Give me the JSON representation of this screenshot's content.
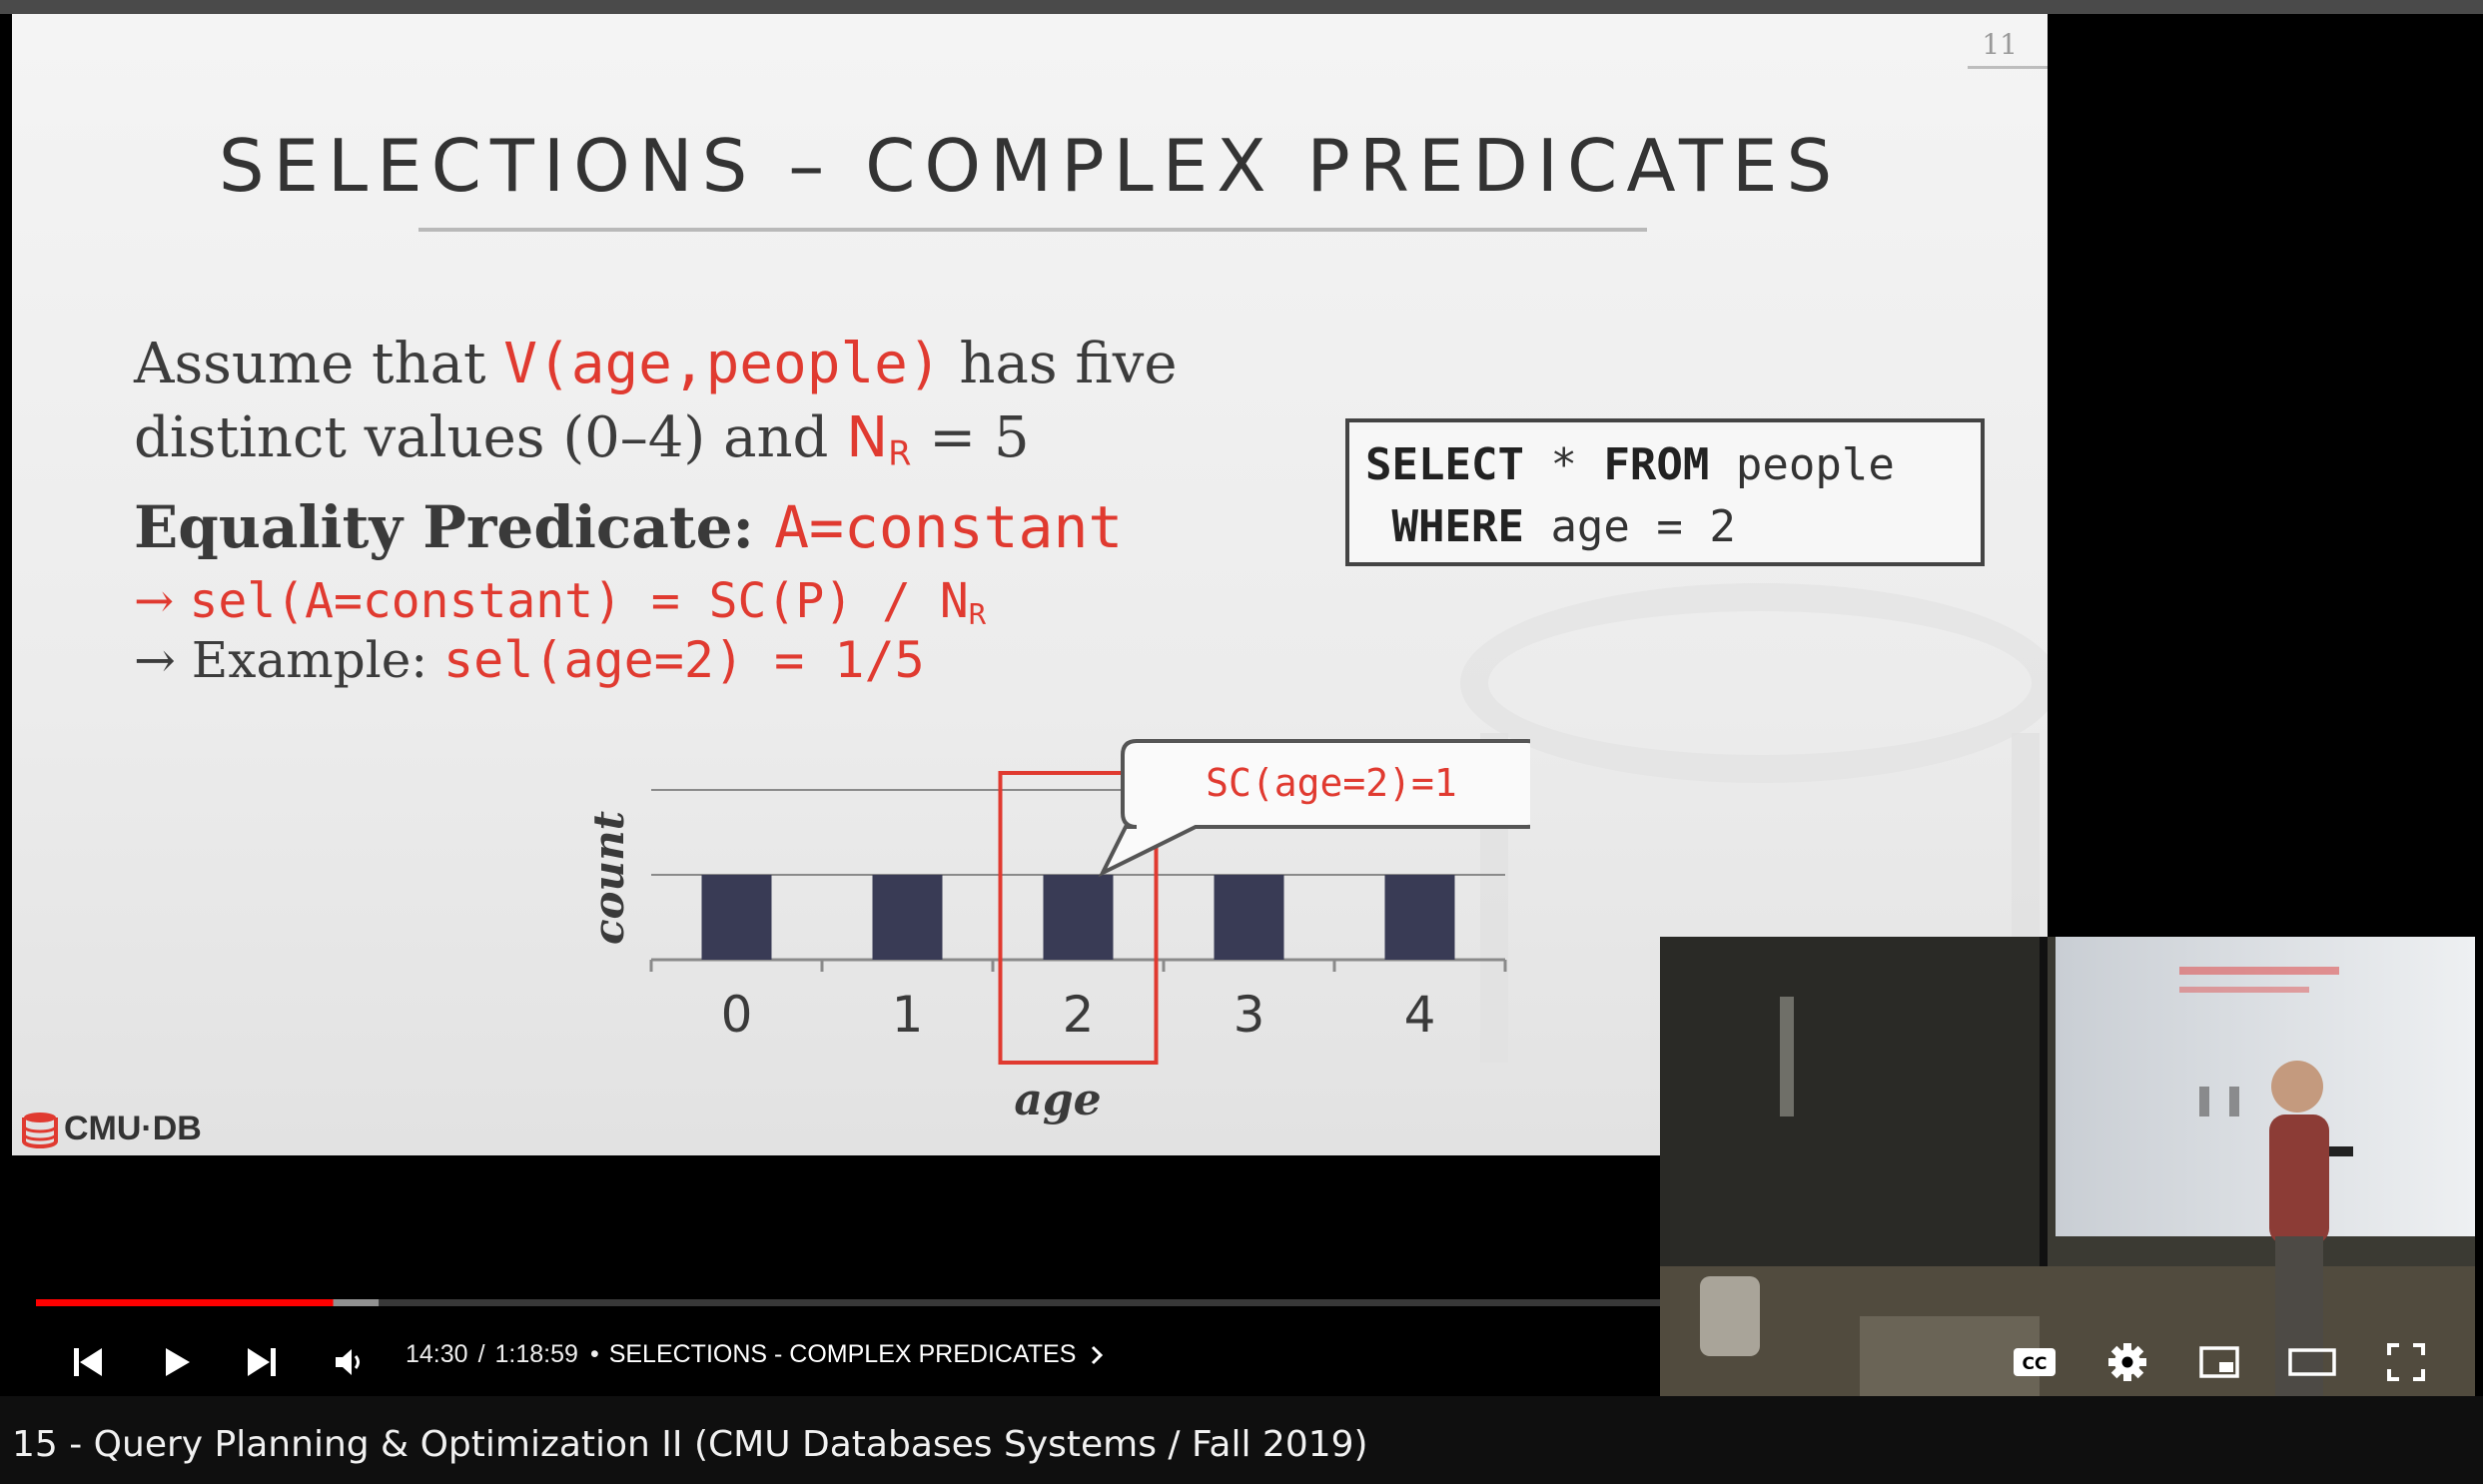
{
  "slide": {
    "number": "11",
    "title": "SELECTIONS – COMPLEX PREDICATES",
    "line1": {
      "t1": "Assume that ",
      "code": "V(age,people)",
      "t2": " has five"
    },
    "line2": {
      "t1": "distinct values (0–4) and ",
      "n": "N",
      "sub": "R",
      "t2": " = 5"
    },
    "line3": {
      "t1": "Equality Predicate: ",
      "code": "A=constant"
    },
    "line4": {
      "arrow": "→ ",
      "code": "sel(A=constant) = SC(P) / N",
      "sub": "R"
    },
    "line5": {
      "arrow": "→ ",
      "t1": "Example: ",
      "code": "sel(age=2) = 1/5"
    },
    "sql": {
      "kw1": "SELECT",
      "star": " * ",
      "kw2": "FROM",
      "table": " people",
      "kw3": "WHERE",
      "cond": " age = 2"
    },
    "callout": "SC(age=2)=1",
    "logo_text": "CMU·DB"
  },
  "chart_data": {
    "type": "bar",
    "categories": [
      "0",
      "1",
      "2",
      "3",
      "4"
    ],
    "values": [
      1,
      1,
      1,
      1,
      1
    ],
    "xlabel": "age",
    "ylabel": "count",
    "ylim": [
      0,
      2
    ],
    "highlight": "2",
    "bar_color": "#393b55",
    "highlight_color": "#e03a30"
  },
  "player": {
    "current_time": "14:30",
    "duration": "1:18:59",
    "separator": "/",
    "dot": "•",
    "chapter": "SELECTIONS - COMPLEX PREDICATES",
    "played_fraction": 0.183,
    "buffered_fraction": 0.211,
    "icons": [
      "previous-icon",
      "play-icon",
      "next-icon",
      "volume-icon",
      "chevron-right-icon",
      "captions-icon",
      "settings-icon",
      "miniplayer-icon",
      "theater-icon",
      "fullscreen-icon"
    ],
    "captions_label": "CC"
  },
  "video_title": "15 - Query Planning & Optimization II (CMU Databases Systems / Fall 2019)",
  "colors": {
    "accent_red": "#ff0000",
    "slide_red": "#e03a30"
  }
}
